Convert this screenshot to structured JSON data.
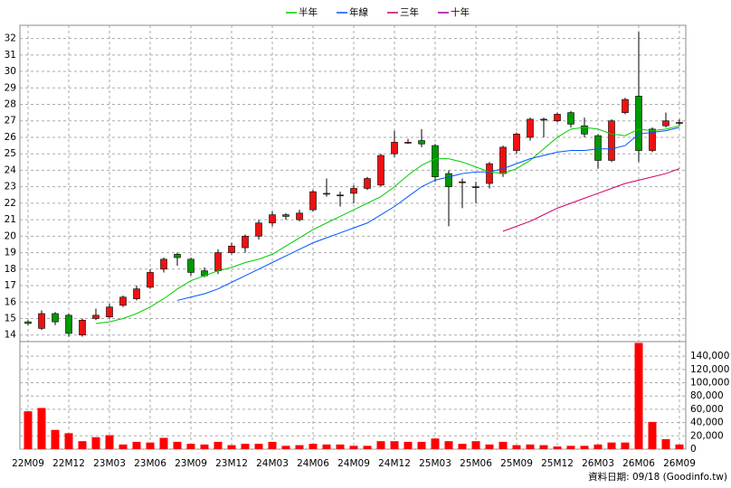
{
  "chart_data": [
    {
      "type": "candlestick",
      "categories": [
        "22M09",
        null,
        null,
        "22M12",
        null,
        null,
        "23M03",
        null,
        null,
        "23M06",
        null,
        null,
        "23M09",
        null,
        null,
        "23M12",
        null,
        null,
        "24M03",
        null,
        null,
        "24M06",
        null,
        null,
        "24M09",
        null,
        null,
        "24M12",
        null,
        null,
        "25M03",
        null,
        null,
        "25M06",
        null,
        null,
        "25M09",
        null,
        null,
        "25M12",
        null,
        null,
        "26M03",
        null,
        null,
        "26M06",
        null,
        null,
        "26M09"
      ],
      "open": [
        14.8,
        14.4,
        15.3,
        15.2,
        14.0,
        15.0,
        15.1,
        15.8,
        16.2,
        16.9,
        18.0,
        18.9,
        18.6,
        17.9,
        17.9,
        19.0,
        19.3,
        20.0,
        20.8,
        21.3,
        21.0,
        21.6,
        22.6,
        22.5,
        22.6,
        22.9,
        23.1,
        25.0,
        25.7,
        25.8,
        25.5,
        23.8,
        23.3,
        23.0,
        23.2,
        23.8,
        25.2,
        26.0,
        27.1,
        27.0,
        27.5,
        26.7,
        26.1,
        24.6,
        27.5,
        28.5,
        25.2,
        26.7,
        26.9
      ],
      "high": [
        14.9,
        15.5,
        15.4,
        15.3,
        15.0,
        15.6,
        15.9,
        16.4,
        17.0,
        18.0,
        18.7,
        19.0,
        18.7,
        18.1,
        19.2,
        19.6,
        20.1,
        21.0,
        21.5,
        21.4,
        21.6,
        22.8,
        23.5,
        22.7,
        23.1,
        23.6,
        25.0,
        26.4,
        25.9,
        26.5,
        25.6,
        24.0,
        23.5,
        23.3,
        24.5,
        25.5,
        26.3,
        27.2,
        27.2,
        27.5,
        27.6,
        27.2,
        26.2,
        27.1,
        28.4,
        32.4,
        26.6,
        27.5,
        27.1
      ],
      "low": [
        14.6,
        14.3,
        14.6,
        13.9,
        13.9,
        14.9,
        15.0,
        15.7,
        16.1,
        16.8,
        17.8,
        18.2,
        17.6,
        17.5,
        17.7,
        18.9,
        19.0,
        19.8,
        20.6,
        21.0,
        20.9,
        21.5,
        22.4,
        21.8,
        22.0,
        22.8,
        23.0,
        24.8,
        25.6,
        25.4,
        23.3,
        20.6,
        21.7,
        22.0,
        22.9,
        23.6,
        25.0,
        25.8,
        26.0,
        26.9,
        26.6,
        26.0,
        24.1,
        24.5,
        27.4,
        24.5,
        25.1,
        26.6,
        26.7
      ],
      "close": [
        14.7,
        15.3,
        14.8,
        14.1,
        14.9,
        15.2,
        15.7,
        16.3,
        16.8,
        17.8,
        18.6,
        18.7,
        17.8,
        17.6,
        19.0,
        19.4,
        20.0,
        20.8,
        21.3,
        21.2,
        21.4,
        22.7,
        22.6,
        22.5,
        22.9,
        23.5,
        24.9,
        25.7,
        25.7,
        25.6,
        23.6,
        23.0,
        23.3,
        23.0,
        24.4,
        25.4,
        26.2,
        27.1,
        27.1,
        27.4,
        26.8,
        26.2,
        24.6,
        27.0,
        28.3,
        25.2,
        26.5,
        27.0,
        26.9
      ],
      "up_color": "#ee1111",
      "down_color": "#009900",
      "series": [
        {
          "name": "半年",
          "color": "#00cc00",
          "values": [
            null,
            null,
            null,
            null,
            null,
            14.7,
            14.8,
            15.0,
            15.3,
            15.7,
            16.2,
            16.8,
            17.3,
            17.6,
            17.9,
            18.1,
            18.4,
            18.6,
            18.9,
            19.4,
            19.9,
            20.4,
            20.8,
            21.2,
            21.6,
            22.0,
            22.4,
            23.0,
            23.7,
            24.3,
            24.7,
            24.7,
            24.5,
            24.2,
            23.9,
            23.8,
            24.1,
            24.6,
            25.3,
            26.0,
            26.5,
            26.6,
            26.5,
            26.2,
            26.1,
            26.5,
            26.4,
            26.5,
            26.7
          ]
        },
        {
          "name": "年線",
          "color": "#0055ff",
          "values": [
            null,
            null,
            null,
            null,
            null,
            null,
            null,
            null,
            null,
            null,
            null,
            16.1,
            16.3,
            16.5,
            16.8,
            17.2,
            17.6,
            18.0,
            18.4,
            18.8,
            19.2,
            19.6,
            19.9,
            20.2,
            20.5,
            20.8,
            21.3,
            21.8,
            22.4,
            23.0,
            23.4,
            23.6,
            23.8,
            23.9,
            23.9,
            24.1,
            24.4,
            24.7,
            24.9,
            25.1,
            25.2,
            25.2,
            25.3,
            25.3,
            25.5,
            26.2,
            26.3,
            26.4,
            26.6
          ]
        },
        {
          "name": "三年",
          "color": "#cc0066",
          "values": [
            null,
            null,
            null,
            null,
            null,
            null,
            null,
            null,
            null,
            null,
            null,
            null,
            null,
            null,
            null,
            null,
            null,
            null,
            null,
            null,
            null,
            null,
            null,
            null,
            null,
            null,
            null,
            null,
            null,
            null,
            null,
            null,
            null,
            null,
            null,
            20.3,
            20.6,
            20.9,
            21.3,
            21.7,
            22.0,
            22.3,
            22.6,
            22.9,
            23.2,
            23.4,
            23.6,
            23.8,
            24.1
          ]
        },
        {
          "name": "十年",
          "color": "#990099",
          "values": [
            null,
            null,
            null,
            null,
            null,
            null,
            null,
            null,
            null,
            null,
            null,
            null,
            null,
            null,
            null,
            null,
            null,
            null,
            null,
            null,
            null,
            null,
            null,
            null,
            null,
            null,
            null,
            null,
            null,
            null,
            null,
            null,
            null,
            null,
            null,
            null,
            null,
            null,
            null,
            null,
            null,
            null,
            null,
            null,
            null,
            null,
            null,
            null,
            null
          ]
        }
      ],
      "ylim": [
        13.6,
        32.8
      ],
      "yticks": [
        14,
        15,
        16,
        17,
        18,
        19,
        20,
        21,
        22,
        23,
        24,
        25,
        26,
        27,
        28,
        29,
        30,
        31,
        32
      ],
      "grid": true
    },
    {
      "type": "bar",
      "color": "#ff0000",
      "values": [
        57000,
        62000,
        29000,
        24000,
        12000,
        18000,
        21000,
        7000,
        11000,
        10000,
        17000,
        11000,
        8000,
        7000,
        11000,
        6000,
        8000,
        8000,
        11000,
        5000,
        6000,
        8000,
        7000,
        7000,
        5000,
        5000,
        12000,
        12000,
        11000,
        11000,
        16000,
        12000,
        8000,
        12000,
        7000,
        11000,
        6000,
        7000,
        6000,
        4000,
        5000,
        5000,
        7000,
        10000,
        10000,
        160000,
        41000,
        15000,
        7000
      ],
      "ylim": [
        0,
        162000
      ],
      "yticks": [
        0,
        {
          "value": 20000,
          "label": "20,000"
        },
        {
          "value": 40000,
          "label": "40,000"
        },
        {
          "value": 60000,
          "label": "60,000"
        },
        {
          "value": 80000,
          "label": "80,000"
        },
        {
          "value": 100000,
          "label": "100,000"
        },
        {
          "value": 120000,
          "label": "120,000"
        },
        {
          "value": 140000,
          "label": "140,000"
        }
      ],
      "grid": true,
      "footnote": "資料日期: 09/18 (Goodinfo.tw)"
    }
  ]
}
